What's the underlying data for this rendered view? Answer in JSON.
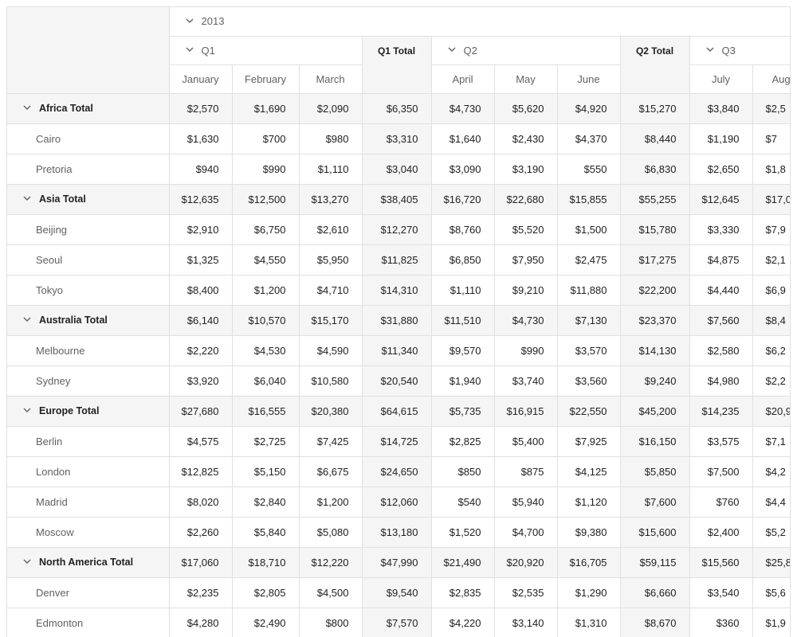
{
  "toolbar": {
    "export_icon": "excel-export-icon"
  },
  "columns": {
    "year": "2013",
    "quarters": [
      {
        "label": "Q1",
        "total_label": "Q1 Total",
        "months": [
          "January",
          "February",
          "March"
        ]
      },
      {
        "label": "Q2",
        "total_label": "Q2 Total",
        "months": [
          "April",
          "May",
          "June"
        ]
      },
      {
        "label": "Q3",
        "total_label": "",
        "months": [
          "July",
          "Augu"
        ]
      }
    ]
  },
  "rows": [
    {
      "type": "group",
      "label": "Africa Total",
      "values": [
        "$2,570",
        "$1,690",
        "$2,090",
        "$6,350",
        "$4,730",
        "$5,620",
        "$4,920",
        "$15,270",
        "$3,840",
        "$2,5"
      ]
    },
    {
      "type": "child",
      "label": "Cairo",
      "values": [
        "$1,630",
        "$700",
        "$980",
        "$3,310",
        "$1,640",
        "$2,430",
        "$4,370",
        "$8,440",
        "$1,190",
        "$7"
      ]
    },
    {
      "type": "child",
      "label": "Pretoria",
      "values": [
        "$940",
        "$990",
        "$1,110",
        "$3,040",
        "$3,090",
        "$3,190",
        "$550",
        "$6,830",
        "$2,650",
        "$1,8"
      ]
    },
    {
      "type": "group",
      "label": "Asia Total",
      "values": [
        "$12,635",
        "$12,500",
        "$13,270",
        "$38,405",
        "$16,720",
        "$22,680",
        "$15,855",
        "$55,255",
        "$12,645",
        "$17,0"
      ]
    },
    {
      "type": "child",
      "label": "Beijing",
      "values": [
        "$2,910",
        "$6,750",
        "$2,610",
        "$12,270",
        "$8,760",
        "$5,520",
        "$1,500",
        "$15,780",
        "$3,330",
        "$7,9"
      ]
    },
    {
      "type": "child",
      "label": "Seoul",
      "values": [
        "$1,325",
        "$4,550",
        "$5,950",
        "$11,825",
        "$6,850",
        "$7,950",
        "$2,475",
        "$17,275",
        "$4,875",
        "$2,1"
      ]
    },
    {
      "type": "child",
      "label": "Tokyo",
      "values": [
        "$8,400",
        "$1,200",
        "$4,710",
        "$14,310",
        "$1,110",
        "$9,210",
        "$11,880",
        "$22,200",
        "$4,440",
        "$6,9"
      ]
    },
    {
      "type": "group",
      "label": "Australia Total",
      "values": [
        "$6,140",
        "$10,570",
        "$15,170",
        "$31,880",
        "$11,510",
        "$4,730",
        "$7,130",
        "$23,370",
        "$7,560",
        "$8,4"
      ]
    },
    {
      "type": "child",
      "label": "Melbourne",
      "values": [
        "$2,220",
        "$4,530",
        "$4,590",
        "$11,340",
        "$9,570",
        "$990",
        "$3,570",
        "$14,130",
        "$2,580",
        "$6,2"
      ]
    },
    {
      "type": "child",
      "label": "Sydney",
      "values": [
        "$3,920",
        "$6,040",
        "$10,580",
        "$20,540",
        "$1,940",
        "$3,740",
        "$3,560",
        "$9,240",
        "$4,980",
        "$2,2"
      ]
    },
    {
      "type": "group",
      "label": "Europe Total",
      "values": [
        "$27,680",
        "$16,555",
        "$20,380",
        "$64,615",
        "$5,735",
        "$16,915",
        "$22,550",
        "$45,200",
        "$14,235",
        "$20,9"
      ]
    },
    {
      "type": "child",
      "label": "Berlin",
      "values": [
        "$4,575",
        "$2,725",
        "$7,425",
        "$14,725",
        "$2,825",
        "$5,400",
        "$7,925",
        "$16,150",
        "$3,575",
        "$7,1"
      ]
    },
    {
      "type": "child",
      "label": "London",
      "values": [
        "$12,825",
        "$5,150",
        "$6,675",
        "$24,650",
        "$850",
        "$875",
        "$4,125",
        "$5,850",
        "$7,500",
        "$4,2"
      ]
    },
    {
      "type": "child",
      "label": "Madrid",
      "values": [
        "$8,020",
        "$2,840",
        "$1,200",
        "$12,060",
        "$540",
        "$5,940",
        "$1,120",
        "$7,600",
        "$760",
        "$4,4"
      ]
    },
    {
      "type": "child",
      "label": "Moscow",
      "values": [
        "$2,260",
        "$5,840",
        "$5,080",
        "$13,180",
        "$1,520",
        "$4,700",
        "$9,380",
        "$15,600",
        "$2,400",
        "$5,2"
      ]
    },
    {
      "type": "group",
      "label": "North America Total",
      "values": [
        "$17,060",
        "$18,710",
        "$12,220",
        "$47,990",
        "$21,490",
        "$20,920",
        "$16,705",
        "$59,115",
        "$15,560",
        "$25,8"
      ]
    },
    {
      "type": "child",
      "label": "Denver",
      "values": [
        "$2,235",
        "$2,805",
        "$4,500",
        "$9,540",
        "$2,835",
        "$2,535",
        "$1,290",
        "$6,660",
        "$3,540",
        "$5,6"
      ]
    },
    {
      "type": "child",
      "label": "Edmonton",
      "values": [
        "$4,280",
        "$2,490",
        "$800",
        "$7,570",
        "$4,220",
        "$3,140",
        "$1,310",
        "$8,670",
        "$360",
        "$1,9"
      ]
    },
    {
      "type": "child",
      "label": "",
      "values": [
        "",
        "",
        "",
        "",
        "",
        "",
        "",
        "",
        "",
        ""
      ]
    }
  ]
}
